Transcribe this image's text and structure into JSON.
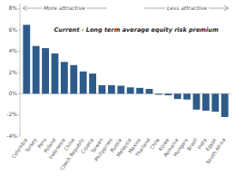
{
  "chart_data": {
    "type": "bar",
    "title": "Current - Long term average equity risk premium",
    "categories": [
      "Colombia",
      "Turkey",
      "Peru",
      "Poland",
      "Indonesia",
      "China",
      "Czech Republic",
      "Croatia",
      "Taiwan",
      "Philippines",
      "Russia",
      "Malaysia",
      "Mexico",
      "Thailand",
      "Chile",
      "Korea",
      "Romania",
      "Hungary",
      "Brazil",
      "India",
      "Egypt",
      "South Africa"
    ],
    "values": [
      6.5,
      4.5,
      4.3,
      3.8,
      3.0,
      2.7,
      2.1,
      1.9,
      0.8,
      0.8,
      0.75,
      0.6,
      0.55,
      0.45,
      -0.1,
      -0.15,
      -0.5,
      -0.55,
      -1.5,
      -1.6,
      -1.7,
      -2.2
    ],
    "color": "#2e5c8a",
    "ylim": [
      -4,
      8.5
    ],
    "yticks": [
      {
        "value": -4,
        "label": "-4%"
      },
      {
        "value": -2,
        "label": "-2%"
      },
      {
        "value": 0,
        "label": "0%"
      },
      {
        "value": 2,
        "label": "2%"
      },
      {
        "value": 4,
        "label": "4%"
      },
      {
        "value": 6,
        "label": "6%"
      },
      {
        "value": 8,
        "label": "8%"
      }
    ],
    "annotations": [
      "More attractive",
      "Less attractive"
    ]
  }
}
